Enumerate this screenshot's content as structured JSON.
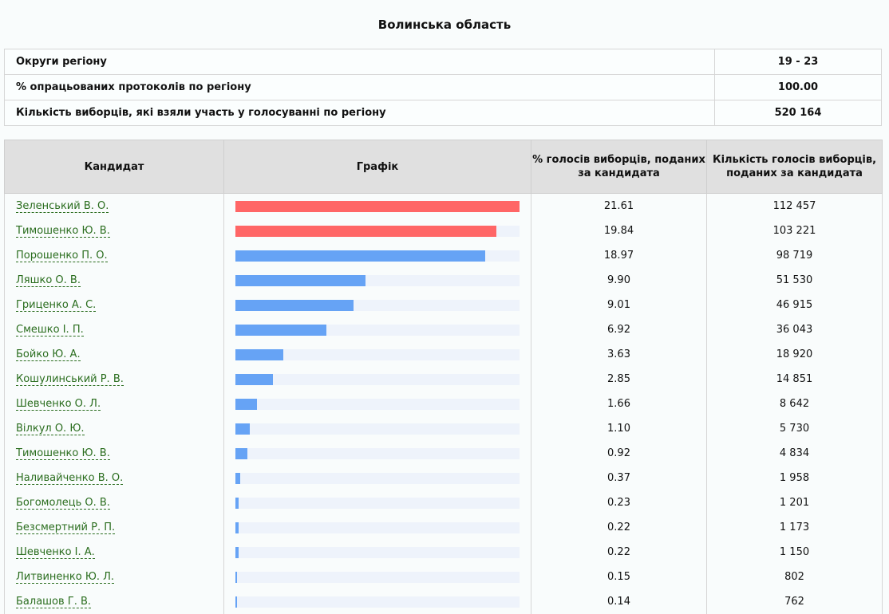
{
  "title": "Волинська область",
  "summary": [
    {
      "label": "Округи регіону",
      "value": "19 - 23"
    },
    {
      "label": "% опрацьованих протоколів по регіону",
      "value": "100.00"
    },
    {
      "label": "Кількість виборців, які взяли участь у голосуванні по регіону",
      "value": "520 164"
    }
  ],
  "headers": {
    "candidate": "Кандидат",
    "chart": "Графік",
    "pct": "% голосів виборців, поданих за кандидата",
    "votes": "Кількість голосів виборців, поданих за кандидата"
  },
  "colors": {
    "leader": "#ff6666",
    "other": "#66a3f5"
  },
  "candidates": [
    {
      "name": "Зеленський В. О.",
      "pct": "21.61",
      "votes": "112 457",
      "leader": true
    },
    {
      "name": "Тимошенко Ю. В.",
      "pct": "19.84",
      "votes": "103 221",
      "leader": true
    },
    {
      "name": "Порошенко П. О.",
      "pct": "18.97",
      "votes": "98 719"
    },
    {
      "name": "Ляшко О. В.",
      "pct": "9.90",
      "votes": "51 530"
    },
    {
      "name": "Гриценко А. С.",
      "pct": "9.01",
      "votes": "46 915"
    },
    {
      "name": "Смешко І. П.",
      "pct": "6.92",
      "votes": "36 043"
    },
    {
      "name": "Бойко Ю. А.",
      "pct": "3.63",
      "votes": "18 920"
    },
    {
      "name": "Кошулинський Р. В.",
      "pct": "2.85",
      "votes": "14 851"
    },
    {
      "name": "Шевченко О. Л.",
      "pct": "1.66",
      "votes": "8 642"
    },
    {
      "name": "Вілкул О. Ю.",
      "pct": "1.10",
      "votes": "5 730"
    },
    {
      "name": "Тимошенко Ю. В.",
      "pct": "0.92",
      "votes": "4 834"
    },
    {
      "name": "Наливайченко В. О.",
      "pct": "0.37",
      "votes": "1 958"
    },
    {
      "name": "Богомолець О. В.",
      "pct": "0.23",
      "votes": "1 201"
    },
    {
      "name": "Безсмертний Р. П.",
      "pct": "0.22",
      "votes": "1 173"
    },
    {
      "name": "Шевченко І. А.",
      "pct": "0.22",
      "votes": "1 150"
    },
    {
      "name": "Литвиненко Ю. Л.",
      "pct": "0.15",
      "votes": "802"
    },
    {
      "name": "Балашов Г. В.",
      "pct": "0.14",
      "votes": "762"
    }
  ]
}
